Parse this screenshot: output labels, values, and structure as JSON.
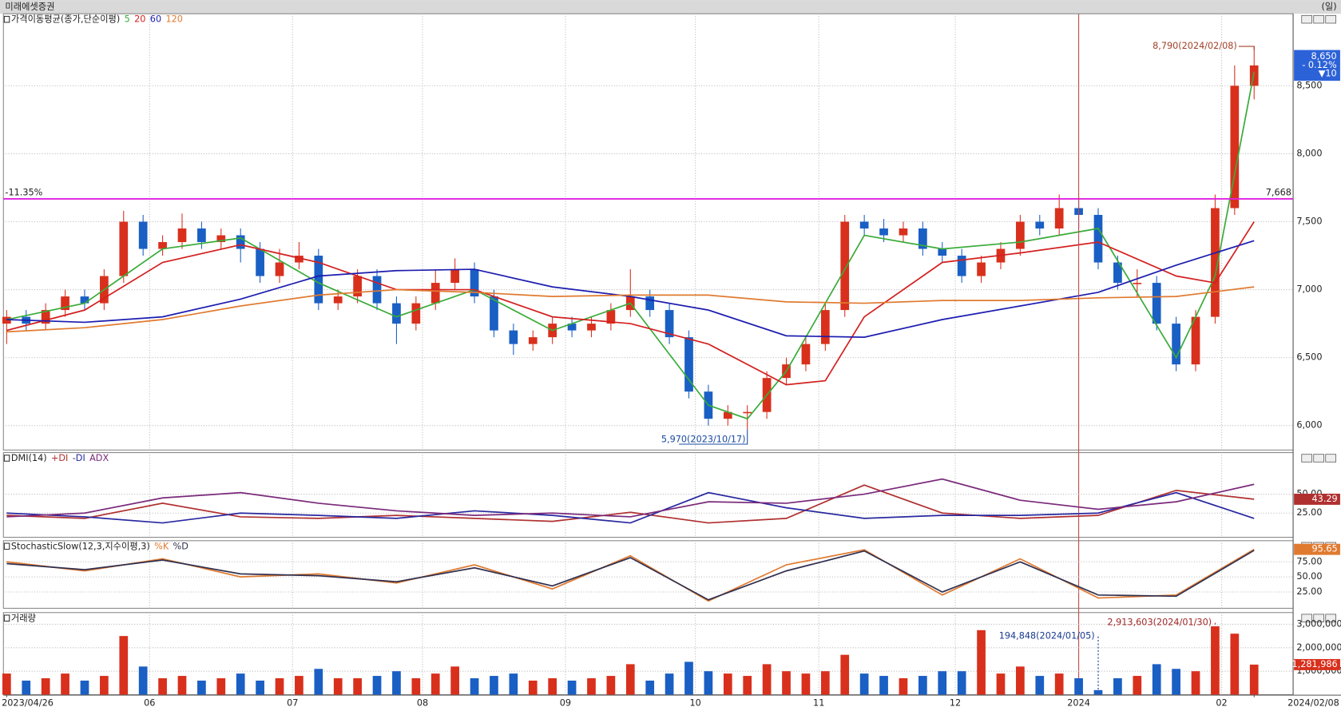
{
  "header": {
    "title": "미래에셋증권",
    "period": "(일)"
  },
  "chart_data": [
    {
      "type": "candlestick",
      "title": "가격이동평균(종가,단순이평)",
      "up_color": "#d8301c",
      "down_color": "#1a5fc4",
      "xlim": [
        -0.5,
        198
      ],
      "ylim": [
        5820,
        9030
      ],
      "xticks": [
        {
          "value": 0,
          "label": "2023/04/26"
        },
        {
          "value": 22,
          "label": "06"
        },
        {
          "value": 44,
          "label": "07"
        },
        {
          "value": 64,
          "label": "08"
        },
        {
          "value": 86,
          "label": "09"
        },
        {
          "value": 106,
          "label": "10"
        },
        {
          "value": 125,
          "label": "11"
        },
        {
          "value": 146,
          "label": "12"
        },
        {
          "value": 165,
          "label": "2024"
        },
        {
          "value": 187,
          "label": "02"
        },
        {
          "value": 192,
          "label": "2024/02/08"
        }
      ],
      "yticks": [
        {
          "value": 6000,
          "label": "6,000"
        },
        {
          "value": 6500,
          "label": "6,500"
        },
        {
          "value": 7000,
          "label": "7,000"
        },
        {
          "value": 7500,
          "label": "7,500"
        },
        {
          "value": 8000,
          "label": "8,000"
        },
        {
          "value": 8500,
          "label": "8,500"
        }
      ],
      "x": [
        0,
        3,
        6,
        9,
        12,
        15,
        18,
        21,
        24,
        27,
        30,
        33,
        36,
        39,
        42,
        45,
        48,
        51,
        54,
        57,
        60,
        63,
        66,
        69,
        72,
        75,
        78,
        81,
        84,
        87,
        90,
        93,
        96,
        99,
        102,
        105,
        108,
        111,
        114,
        117,
        120,
        123,
        126,
        129,
        132,
        135,
        138,
        141,
        144,
        147,
        150,
        153,
        156,
        159,
        162,
        165,
        168,
        171,
        174,
        177,
        180,
        183,
        186,
        189,
        192
      ],
      "open": [
        6750,
        6800,
        6750,
        6850,
        6950,
        6900,
        7100,
        7500,
        7300,
        7350,
        7450,
        7350,
        7400,
        7300,
        7100,
        7200,
        7250,
        6900,
        6950,
        7100,
        6900,
        6750,
        6900,
        7050,
        7150,
        6950,
        6700,
        6600,
        6650,
        6750,
        6700,
        6750,
        6850,
        6950,
        6850,
        6650,
        6250,
        6050,
        6100,
        6100,
        6350,
        6450,
        6600,
        6850,
        7500,
        7450,
        7400,
        7450,
        7300,
        7250,
        7100,
        7200,
        7300,
        7500,
        7450,
        7600,
        7550,
        7200,
        7050,
        7050,
        6750,
        6450,
        6800,
        7600,
        8500
      ],
      "high": [
        6850,
        6850,
        6900,
        7000,
        7000,
        7150,
        7580,
        7550,
        7400,
        7560,
        7500,
        7450,
        7450,
        7350,
        7300,
        7350,
        7300,
        7000,
        7150,
        7150,
        6950,
        6950,
        7150,
        7230,
        7200,
        7000,
        6750,
        6700,
        6800,
        6800,
        6800,
        6900,
        7150,
        7000,
        6900,
        6700,
        6300,
        6150,
        6150,
        6400,
        6500,
        6650,
        6900,
        7550,
        7550,
        7520,
        7500,
        7500,
        7350,
        7300,
        7250,
        7350,
        7550,
        7550,
        7700,
        7680,
        7600,
        7250,
        7150,
        7100,
        6800,
        6850,
        7700,
        8650,
        8790
      ],
      "low": [
        6600,
        6700,
        6700,
        6800,
        6850,
        6850,
        7050,
        7250,
        7250,
        7300,
        7300,
        7300,
        7200,
        7050,
        7050,
        7150,
        6850,
        6850,
        6900,
        6850,
        6600,
        6700,
        6850,
        7000,
        6900,
        6650,
        6520,
        6550,
        6600,
        6650,
        6650,
        6700,
        6800,
        6800,
        6600,
        6200,
        6000,
        6000,
        5970,
        6050,
        6300,
        6400,
        6550,
        6800,
        7400,
        7350,
        7350,
        7250,
        7200,
        7050,
        7050,
        7150,
        7250,
        7400,
        7400,
        7450,
        7150,
        7000,
        6950,
        6700,
        6400,
        6400,
        6750,
        7550,
        8400
      ],
      "close": [
        6800,
        6750,
        6850,
        6950,
        6900,
        7100,
        7500,
        7300,
        7350,
        7450,
        7350,
        7400,
        7300,
        7100,
        7200,
        7250,
        6900,
        6950,
        7100,
        6900,
        6750,
        6900,
        7050,
        7150,
        6950,
        6700,
        6600,
        6650,
        6750,
        6700,
        6750,
        6850,
        6950,
        6850,
        6650,
        6250,
        6050,
        6100,
        6100,
        6350,
        6450,
        6600,
        6850,
        7500,
        7450,
        7400,
        7450,
        7300,
        7250,
        7100,
        7200,
        7300,
        7500,
        7450,
        7600,
        7550,
        7200,
        7050,
        7050,
        6750,
        6450,
        6800,
        7600,
        8500,
        8650
      ],
      "series": [
        {
          "name": "5",
          "color": "#3aab3a",
          "x": [
            0,
            12,
            24,
            36,
            48,
            60,
            72,
            84,
            96,
            108,
            114,
            120,
            132,
            144,
            156,
            168,
            180,
            186,
            192
          ],
          "values": [
            6780,
            6900,
            7300,
            7380,
            7050,
            6800,
            7000,
            6700,
            6900,
            6150,
            6050,
            6400,
            7400,
            7300,
            7350,
            7450,
            6500,
            7100,
            8600
          ]
        },
        {
          "name": "20",
          "color": "#d42020",
          "x": [
            0,
            12,
            24,
            36,
            48,
            60,
            72,
            84,
            96,
            108,
            120,
            126,
            132,
            144,
            156,
            168,
            180,
            186,
            192
          ],
          "values": [
            6700,
            6850,
            7200,
            7330,
            7200,
            7000,
            7000,
            6800,
            6750,
            6600,
            6300,
            6330,
            6800,
            7200,
            7270,
            7350,
            7100,
            7050,
            7500
          ]
        },
        {
          "name": "60",
          "color": "#1c1cb0",
          "x": [
            0,
            12,
            24,
            36,
            48,
            60,
            72,
            84,
            96,
            108,
            120,
            132,
            144,
            156,
            168,
            180,
            192
          ],
          "values": [
            6780,
            6760,
            6800,
            6930,
            7100,
            7140,
            7150,
            7020,
            6950,
            6850,
            6660,
            6650,
            6780,
            6880,
            6980,
            7180,
            7360
          ]
        },
        {
          "name": "120",
          "color": "#e07a30",
          "x": [
            0,
            12,
            24,
            36,
            48,
            60,
            72,
            84,
            96,
            108,
            120,
            132,
            144,
            156,
            168,
            180,
            192
          ],
          "values": [
            6690,
            6720,
            6780,
            6880,
            6960,
            7000,
            6980,
            6950,
            6960,
            6960,
            6910,
            6900,
            6920,
            6920,
            6940,
            6950,
            7020
          ]
        }
      ],
      "hline": {
        "value": 7668,
        "label": "7,668",
        "change_label": "-11.35%",
        "color": "#e020e0"
      },
      "event_line": {
        "x": 165,
        "color": "#c04848"
      },
      "annotations": [
        {
          "x": 192,
          "value": 8790,
          "label": "8,790(2024/02/08)",
          "color": "#a04028"
        },
        {
          "x": 114,
          "value": 5970,
          "label": "5,970(2023/10/17)",
          "color": "#1a4aa0"
        }
      ],
      "current": {
        "value": 8650,
        "label": "8,650",
        "change": "- 0.12%",
        "diff": "▼10",
        "color": "#2c62d8"
      }
    },
    {
      "type": "line",
      "title": "DMI(14)",
      "ylim": [
        -7,
        105
      ],
      "yticks": [
        {
          "value": 25,
          "label": "25.00"
        },
        {
          "value": 50,
          "label": "50.00"
        }
      ],
      "x": [
        0,
        12,
        24,
        36,
        48,
        60,
        72,
        84,
        96,
        108,
        120,
        132,
        144,
        156,
        168,
        180,
        192
      ],
      "series": [
        {
          "name": "+DI",
          "color": "#b03030",
          "label_last": true,
          "values": [
            22,
            18,
            38,
            20,
            18,
            22,
            18,
            14,
            26,
            12,
            18,
            62,
            25,
            18,
            22,
            55,
            43.29
          ]
        },
        {
          "name": "-DI",
          "color": "#2828a0",
          "values": [
            25,
            20,
            12,
            25,
            22,
            18,
            28,
            22,
            12,
            52,
            32,
            18,
            22,
            22,
            25,
            52,
            18
          ]
        },
        {
          "name": "ADX",
          "color": "#7a2a7a",
          "values": [
            20,
            25,
            45,
            52,
            38,
            28,
            22,
            25,
            20,
            40,
            38,
            50,
            70,
            42,
            30,
            40,
            63
          ]
        }
      ]
    },
    {
      "type": "line",
      "title": "StochasticSlow(12,3,지수이평,3)",
      "ylim": [
        -2,
        110
      ],
      "yticks": [
        {
          "value": 25,
          "label": "25.00"
        },
        {
          "value": 50,
          "label": "50.00"
        },
        {
          "value": 75,
          "label": "75.00"
        }
      ],
      "x": [
        0,
        12,
        24,
        36,
        48,
        60,
        72,
        84,
        96,
        108,
        120,
        132,
        144,
        156,
        168,
        180,
        192
      ],
      "series": [
        {
          "name": "%K",
          "color": "#e07a30",
          "label_last": true,
          "values": [
            75,
            60,
            80,
            50,
            55,
            40,
            70,
            30,
            85,
            10,
            70,
            95,
            20,
            80,
            15,
            20,
            95.65
          ]
        },
        {
          "name": "%D",
          "color": "#303050",
          "values": [
            72,
            62,
            78,
            55,
            52,
            42,
            65,
            35,
            82,
            12,
            60,
            93,
            25,
            75,
            20,
            18,
            94
          ]
        }
      ]
    },
    {
      "type": "bar",
      "title": "거래량",
      "ylim": [
        0,
        3500000
      ],
      "yticks": [
        {
          "value": 1000000,
          "label": "1,000,000"
        },
        {
          "value": 2000000,
          "label": "2,000,000"
        },
        {
          "value": 3000000,
          "label": "3,000,000"
        }
      ],
      "values": [
        900000,
        600000,
        700000,
        900000,
        600000,
        800000,
        2500000,
        1200000,
        700000,
        800000,
        600000,
        700000,
        900000,
        600000,
        700000,
        800000,
        1100000,
        700000,
        700000,
        800000,
        1000000,
        700000,
        900000,
        1200000,
        700000,
        800000,
        900000,
        600000,
        700000,
        600000,
        700000,
        800000,
        1300000,
        600000,
        900000,
        1400000,
        1000000,
        900000,
        800000,
        1300000,
        1000000,
        900000,
        1000000,
        1700000,
        900000,
        800000,
        700000,
        800000,
        1000000,
        1000000,
        2750000,
        900000,
        1200000,
        800000,
        900000,
        700000,
        194848,
        700000,
        800000,
        1300000,
        1100000,
        1000000,
        2913603,
        2600000,
        1281986
      ],
      "current_label": "1,281,986",
      "annotations": [
        {
          "x": 168,
          "value": 194848,
          "label": "194,848(2024/01/05)",
          "color": "#1a3a90"
        },
        {
          "x": 186,
          "value": 2913603,
          "label": "2,913,603(2024/01/30)",
          "color": "#a02828"
        }
      ]
    }
  ]
}
